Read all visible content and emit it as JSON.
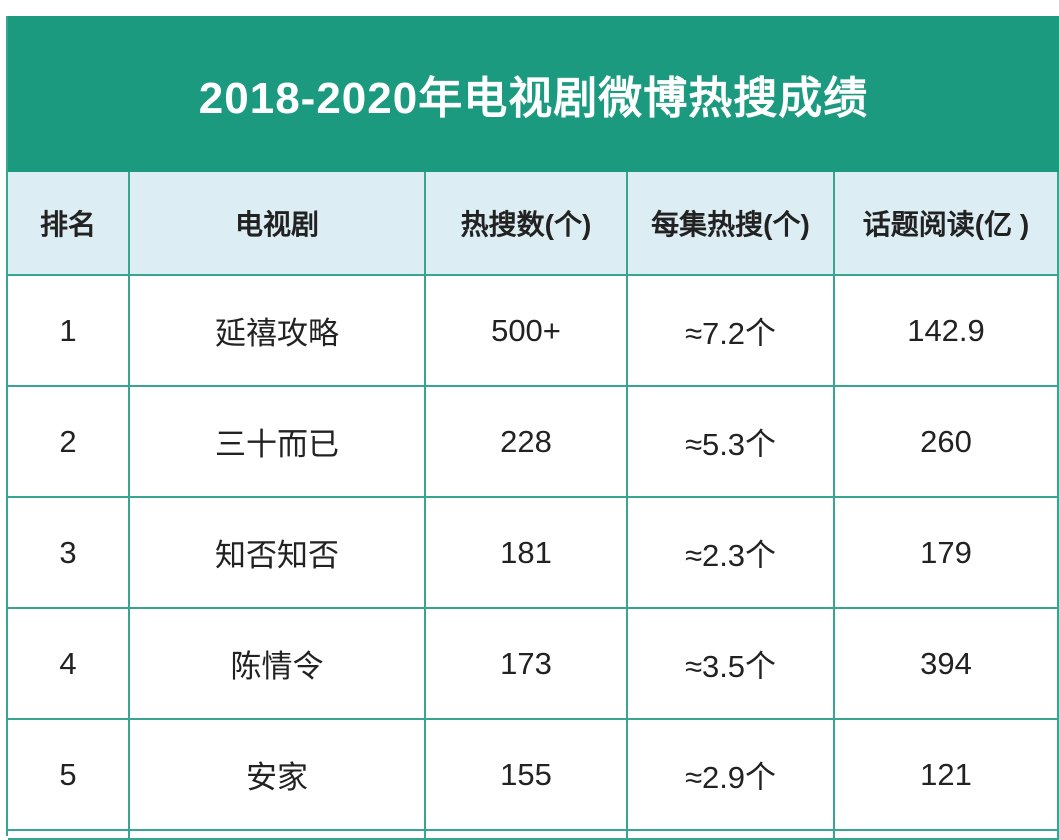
{
  "header": {
    "title": "2018-2020年电视剧微博热搜成绩"
  },
  "table": {
    "columns": [
      "排名",
      "电视剧",
      "热搜数(个)",
      "每集热搜(个)",
      "话题阅读(亿 )"
    ],
    "rows": [
      [
        "1",
        "延禧攻略",
        "500+",
        "≈7.2个",
        "142.9"
      ],
      [
        "2",
        "三十而已",
        "228",
        "≈5.3个",
        "260"
      ],
      [
        "3",
        "知否知否",
        "181",
        "≈2.3个",
        "179"
      ],
      [
        "4",
        "陈情令",
        "173",
        "≈3.5个",
        "394"
      ],
      [
        "5",
        "安家",
        "155",
        "≈2.9个",
        "121"
      ]
    ]
  }
}
